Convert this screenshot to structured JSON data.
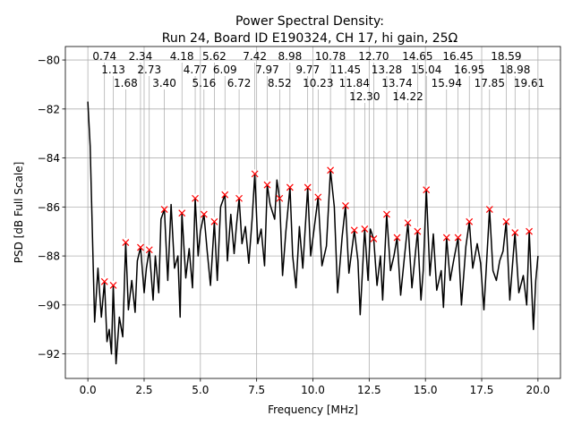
{
  "chart_data": {
    "type": "line",
    "title_line1": "Power Spectral Density:",
    "title_line2": "Run 24, Board ID E190324, CH 17, hi gain, 25Ω",
    "xlabel": "Frequency [MHz]",
    "ylabel": "PSD [dB Full Scale]",
    "xlim": [
      -1,
      21
    ],
    "ylim": [
      -93,
      -79.45
    ],
    "xticks": [
      0.0,
      2.5,
      5.0,
      7.5,
      10.0,
      12.5,
      15.0,
      17.5,
      20.0
    ],
    "xtick_labels": [
      "0.0",
      "2.5",
      "5.0",
      "7.5",
      "10.0",
      "12.5",
      "15.0",
      "17.5",
      "20.0"
    ],
    "yticks": [
      -80,
      -82,
      -84,
      -86,
      -88,
      -90,
      -92
    ],
    "ytick_labels": [
      "−80",
      "−82",
      "−84",
      "−86",
      "−88",
      "−90",
      "−92"
    ],
    "grid": true,
    "line_color": "#000000",
    "marker_color": "#ff0000",
    "series": [
      {
        "x": [
          0,
          0.1,
          0.3,
          0.45,
          0.6,
          0.74,
          0.85,
          0.95,
          1.05,
          1.13,
          1.25,
          1.4,
          1.55,
          1.68,
          1.8,
          1.95,
          2.1,
          2.2,
          2.34,
          2.5,
          2.6,
          2.73,
          2.9,
          3.0,
          3.15,
          3.25,
          3.4,
          3.55,
          3.7,
          3.85,
          4.0,
          4.1,
          4.18,
          4.35,
          4.5,
          4.65,
          4.77,
          4.9,
          5.0,
          5.16,
          5.3,
          5.45,
          5.62,
          5.75,
          5.9,
          6.09,
          6.2,
          6.35,
          6.5,
          6.6,
          6.72,
          6.85,
          7.0,
          7.15,
          7.3,
          7.42,
          7.55,
          7.7,
          7.85,
          7.97,
          8.1,
          8.3,
          8.4,
          8.52,
          8.65,
          8.8,
          8.98,
          9.1,
          9.25,
          9.4,
          9.55,
          9.77,
          9.9,
          10.05,
          10.23,
          10.4,
          10.6,
          10.78,
          10.95,
          11.1,
          11.3,
          11.45,
          11.6,
          11.84,
          12.0,
          12.1,
          12.3,
          12.45,
          12.55,
          12.7,
          12.85,
          13.0,
          13.1,
          13.28,
          13.45,
          13.6,
          13.74,
          13.9,
          14.05,
          14.22,
          14.4,
          14.65,
          14.8,
          14.9,
          15.04,
          15.2,
          15.35,
          15.5,
          15.7,
          15.8,
          15.94,
          16.1,
          16.25,
          16.45,
          16.6,
          16.8,
          16.95,
          17.1,
          17.3,
          17.45,
          17.6,
          17.85,
          18.0,
          18.15,
          18.3,
          18.45,
          18.59,
          18.75,
          18.98,
          19.15,
          19.35,
          19.5,
          19.61,
          19.8,
          19.9,
          20.0
        ],
        "y": [
          -81.7,
          -83.5,
          -90.7,
          -88.5,
          -90.5,
          -89.05,
          -91.5,
          -91.0,
          -92.0,
          -89.2,
          -92.4,
          -90.5,
          -91.3,
          -87.45,
          -90.2,
          -89.0,
          -90.3,
          -88.2,
          -87.65,
          -89.5,
          -88.5,
          -87.75,
          -89.8,
          -88.0,
          -89.5,
          -86.5,
          -86.1,
          -89.0,
          -85.9,
          -88.5,
          -88.0,
          -90.5,
          -86.25,
          -88.9,
          -87.7,
          -89.3,
          -85.65,
          -88.0,
          -87.0,
          -86.3,
          -87.8,
          -89.2,
          -86.6,
          -89.0,
          -86.0,
          -85.5,
          -88.2,
          -86.3,
          -87.9,
          -86.8,
          -85.65,
          -87.5,
          -86.8,
          -88.3,
          -86.5,
          -84.65,
          -87.5,
          -86.9,
          -88.4,
          -85.1,
          -85.9,
          -86.5,
          -84.9,
          -85.65,
          -88.8,
          -87.0,
          -85.2,
          -88.0,
          -89.3,
          -86.8,
          -88.5,
          -85.2,
          -88.0,
          -86.9,
          -85.6,
          -88.4,
          -87.6,
          -84.5,
          -86.0,
          -89.5,
          -87.2,
          -85.95,
          -88.7,
          -86.95,
          -88.2,
          -90.4,
          -86.9,
          -89.0,
          -86.9,
          -87.3,
          -89.2,
          -88.0,
          -89.8,
          -86.3,
          -88.6,
          -88.0,
          -87.25,
          -89.6,
          -88.2,
          -86.65,
          -89.3,
          -87.0,
          -89.8,
          -88.6,
          -85.3,
          -88.8,
          -87.1,
          -89.4,
          -88.6,
          -90.1,
          -87.25,
          -89.0,
          -88.2,
          -87.25,
          -90.0,
          -87.6,
          -86.6,
          -88.5,
          -87.5,
          -88.3,
          -90.2,
          -86.1,
          -88.6,
          -89.0,
          -88.2,
          -87.8,
          -86.6,
          -89.8,
          -87.05,
          -89.5,
          -88.8,
          -90.0,
          -87.0,
          -91.0,
          -89.0,
          -88.0
        ]
      }
    ],
    "peaks": [
      {
        "label": "0.74",
        "x": 0.74,
        "y": -89.05
      },
      {
        "label": "1.13",
        "x": 1.13,
        "y": -89.2
      },
      {
        "label": "1.68",
        "x": 1.68,
        "y": -87.45
      },
      {
        "label": "2.34",
        "x": 2.34,
        "y": -87.65
      },
      {
        "label": "2.73",
        "x": 2.73,
        "y": -87.75
      },
      {
        "label": "3.40",
        "x": 3.4,
        "y": -86.1
      },
      {
        "label": "4.18",
        "x": 4.18,
        "y": -86.25
      },
      {
        "label": "4.77",
        "x": 4.77,
        "y": -85.65
      },
      {
        "label": "5.16",
        "x": 5.16,
        "y": -86.3
      },
      {
        "label": "5.62",
        "x": 5.62,
        "y": -86.6
      },
      {
        "label": "6.09",
        "x": 6.09,
        "y": -85.5
      },
      {
        "label": "6.72",
        "x": 6.72,
        "y": -85.65
      },
      {
        "label": "7.42",
        "x": 7.42,
        "y": -84.65
      },
      {
        "label": "7.97",
        "x": 7.97,
        "y": -85.1
      },
      {
        "label": "8.52",
        "x": 8.52,
        "y": -85.65
      },
      {
        "label": "8.98",
        "x": 8.98,
        "y": -85.2
      },
      {
        "label": "9.77",
        "x": 9.77,
        "y": -85.2
      },
      {
        "label": "10.23",
        "x": 10.23,
        "y": -85.6
      },
      {
        "label": "10.78",
        "x": 10.78,
        "y": -84.5
      },
      {
        "label": "11.45",
        "x": 11.45,
        "y": -85.95
      },
      {
        "label": "11.84",
        "x": 11.84,
        "y": -86.95
      },
      {
        "label": "12.30",
        "x": 12.3,
        "y": -86.9
      },
      {
        "label": "12.70",
        "x": 12.7,
        "y": -87.3
      },
      {
        "label": "13.28",
        "x": 13.28,
        "y": -86.3
      },
      {
        "label": "13.74",
        "x": 13.74,
        "y": -87.25
      },
      {
        "label": "14.22",
        "x": 14.22,
        "y": -86.65
      },
      {
        "label": "14.65",
        "x": 14.65,
        "y": -87.0
      },
      {
        "label": "15.04",
        "x": 15.04,
        "y": -85.3
      },
      {
        "label": "15.94",
        "x": 15.94,
        "y": -87.25
      },
      {
        "label": "16.45",
        "x": 16.45,
        "y": -87.25
      },
      {
        "label": "16.95",
        "x": 16.95,
        "y": -86.6
      },
      {
        "label": "17.85",
        "x": 17.85,
        "y": -86.1
      },
      {
        "label": "18.59",
        "x": 18.59,
        "y": -86.6
      },
      {
        "label": "18.98",
        "x": 18.98,
        "y": -87.05
      },
      {
        "label": "19.61",
        "x": 19.61,
        "y": -87.0
      }
    ]
  }
}
